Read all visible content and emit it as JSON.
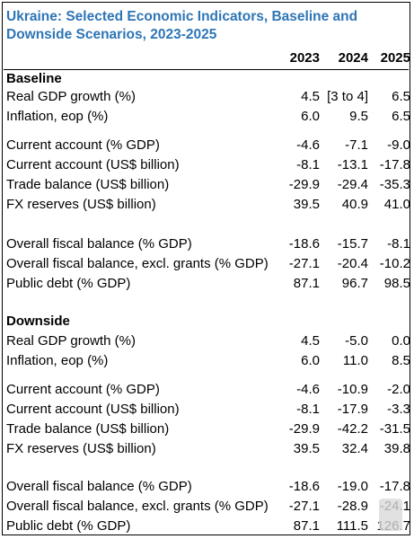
{
  "title": "Ukraine: Selected Economic Indicators, Baseline and Downside Scenarios, 2023-2025",
  "years": [
    "2023",
    "2024",
    "2025"
  ],
  "sections": [
    {
      "name": "Baseline",
      "rows": [
        {
          "label": "Real GDP growth (%)",
          "values": [
            "4.5",
            "[3 to 4]",
            "6.5"
          ]
        },
        {
          "label": "Inflation, eop (%)",
          "values": [
            "6.0",
            "9.5",
            "6.5"
          ]
        },
        {
          "label": "Current account (% GDP)",
          "values": [
            "-4.6",
            "-7.1",
            "-9.0"
          ]
        },
        {
          "label": "Current account (US$ billion)",
          "values": [
            "-8.1",
            "-13.1",
            "-17.8"
          ]
        },
        {
          "label": "Trade balance (US$ billion)",
          "values": [
            "-29.9",
            "-29.4",
            "-35.3"
          ]
        },
        {
          "label": "FX reserves (US$ billion)",
          "values": [
            "39.5",
            "40.9",
            "41.0"
          ]
        },
        {
          "label": "Overall fiscal balance (% GDP)",
          "values": [
            "-18.6",
            "-15.7",
            "-8.1"
          ]
        },
        {
          "label": "Overall fiscal balance, excl. grants (% GDP)",
          "values": [
            "-27.1",
            "-20.4",
            "-10.2"
          ]
        },
        {
          "label": "Public debt (% GDP)",
          "values": [
            "87.1",
            "96.7",
            "98.5"
          ]
        }
      ]
    },
    {
      "name": "Downside",
      "rows": [
        {
          "label": "Real GDP growth (%)",
          "values": [
            "4.5",
            "-5.0",
            "0.0"
          ]
        },
        {
          "label": "Inflation, eop (%)",
          "values": [
            "6.0",
            "11.0",
            "8.5"
          ]
        },
        {
          "label": "Current account (% GDP)",
          "values": [
            "-4.6",
            "-10.9",
            "-2.0"
          ]
        },
        {
          "label": "Current account (US$ billion)",
          "values": [
            "-8.1",
            "-17.9",
            "-3.3"
          ]
        },
        {
          "label": "Trade balance (US$ billion)",
          "values": [
            "-29.9",
            "-42.2",
            "-31.5"
          ]
        },
        {
          "label": "FX reserves (US$ billion)",
          "values": [
            "39.5",
            "32.4",
            "39.8"
          ]
        },
        {
          "label": "Overall fiscal balance (% GDP)",
          "values": [
            "-18.6",
            "-19.0",
            "-17.8"
          ]
        },
        {
          "label": "Overall fiscal balance, excl. grants (% GDP)",
          "values": [
            "-27.1",
            "-28.9",
            "-24.1"
          ]
        },
        {
          "label": "Public debt (% GDP)",
          "values": [
            "87.1",
            "111.5",
            "126.7"
          ]
        }
      ]
    }
  ]
}
